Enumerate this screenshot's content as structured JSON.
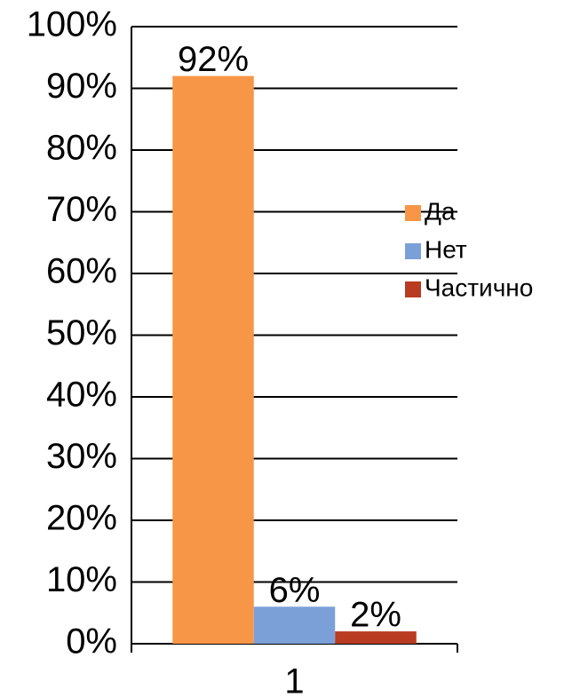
{
  "chart_data": {
    "type": "bar",
    "categories": [
      "1"
    ],
    "series": [
      {
        "name": "Да",
        "color": "#f79646",
        "values": [
          92
        ],
        "value_labels": [
          "92%"
        ]
      },
      {
        "name": "Нет",
        "color": "#7ba0d8",
        "values": [
          6
        ],
        "value_labels": [
          "6%"
        ]
      },
      {
        "name": "Частично",
        "color": "#b83b22",
        "values": [
          2
        ],
        "value_labels": [
          "2%"
        ]
      }
    ],
    "ylim": [
      0,
      100
    ],
    "yticks": [
      {
        "value": 0,
        "label": "0%"
      },
      {
        "value": 10,
        "label": "10%"
      },
      {
        "value": 20,
        "label": "20%"
      },
      {
        "value": 30,
        "label": "30%"
      },
      {
        "value": 40,
        "label": "40%"
      },
      {
        "value": 50,
        "label": "50%"
      },
      {
        "value": 60,
        "label": "60%"
      },
      {
        "value": 70,
        "label": "70%"
      },
      {
        "value": 80,
        "label": "80%"
      },
      {
        "value": 90,
        "label": "90%"
      },
      {
        "value": 100,
        "label": "100%"
      }
    ],
    "grid": true,
    "legend": "right"
  }
}
